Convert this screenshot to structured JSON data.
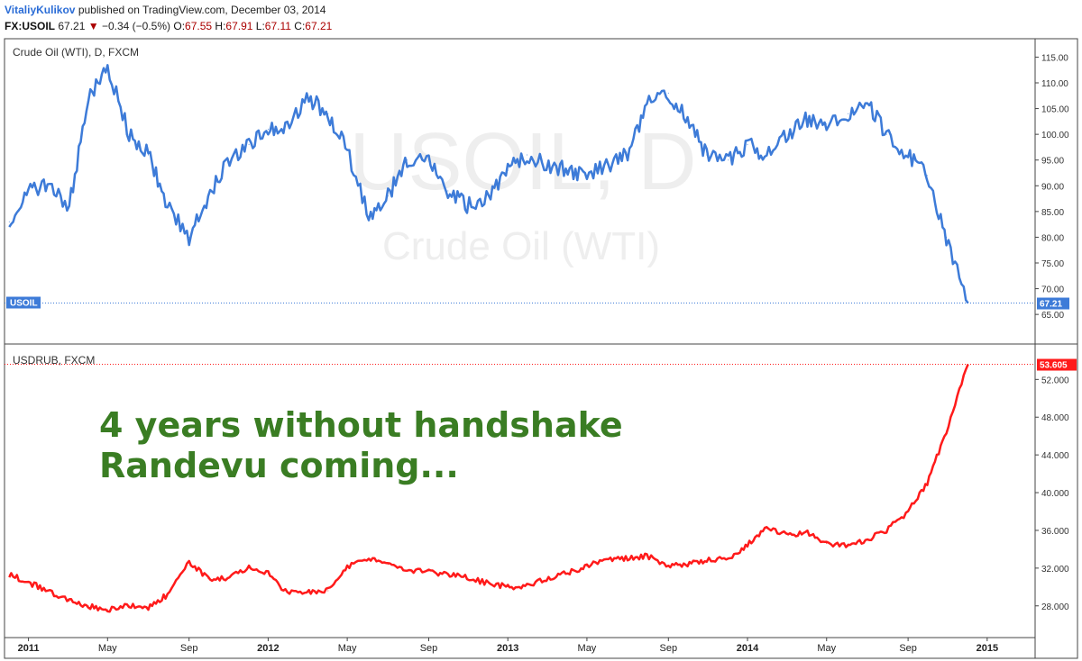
{
  "header": {
    "author": "VitaliyKulikov",
    "published": "published on TradingView.com, December 03, 2014",
    "symbol": "FX:USOIL",
    "last": "67.21",
    "change": "−0.34 (−0.5%)",
    "o_label": "O:",
    "o": "67.55",
    "h_label": "H:",
    "h": "67.91",
    "l_label": "L:",
    "l": "67.11",
    "c_label": "C:",
    "c": "67.21"
  },
  "overlay": {
    "line1": "4 years without handshake",
    "line2": "Randevu coming..."
  },
  "chart_data": [
    {
      "type": "line",
      "title": "Crude Oil (WTI), D, FXCM",
      "watermark": [
        "USOIL, D",
        "Crude Oil (WTI)"
      ],
      "series_label": "USOIL",
      "last_value": "67.21",
      "color": "#3d7bd8",
      "ylim": [
        61,
        117
      ],
      "yticks": [
        65,
        70,
        75,
        80,
        85,
        90,
        95,
        100,
        105,
        110,
        115
      ],
      "x": [
        2010.92,
        2011.0,
        2011.08,
        2011.17,
        2011.25,
        2011.33,
        2011.42,
        2011.5,
        2011.58,
        2011.67,
        2011.75,
        2011.83,
        2011.92,
        2012.0,
        2012.08,
        2012.17,
        2012.25,
        2012.33,
        2012.42,
        2012.5,
        2012.58,
        2012.67,
        2012.75,
        2012.83,
        2012.92,
        2013.0,
        2013.08,
        2013.17,
        2013.25,
        2013.33,
        2013.42,
        2013.5,
        2013.58,
        2013.67,
        2013.75,
        2013.83,
        2013.92,
        2014.0,
        2014.08,
        2014.17,
        2014.25,
        2014.33,
        2014.42,
        2014.5,
        2014.58,
        2014.67,
        2014.75,
        2014.83,
        2014.92
      ],
      "y": [
        83,
        89,
        90,
        86,
        107,
        113,
        100,
        96,
        86,
        80,
        88,
        95,
        98,
        101,
        102,
        107,
        104,
        97,
        84,
        88,
        95,
        95,
        89,
        86,
        88,
        93,
        96,
        94,
        93,
        92,
        94,
        96,
        106,
        108,
        103,
        96,
        95,
        98,
        96,
        100,
        103,
        102,
        104,
        106,
        100,
        96,
        92,
        80,
        67.21
      ]
    },
    {
      "type": "line",
      "title": "USDRUB, FXCM",
      "last_value": "53.605",
      "color": "#ff1a1a",
      "ylim": [
        25.4,
        54.8
      ],
      "yticks": [
        "28.000",
        "32.000",
        "36.000",
        "40.000",
        "44.000",
        "48.000",
        "52.000"
      ],
      "x": [
        2010.92,
        2011.0,
        2011.08,
        2011.17,
        2011.25,
        2011.33,
        2011.42,
        2011.5,
        2011.58,
        2011.67,
        2011.75,
        2011.83,
        2011.92,
        2012.0,
        2012.08,
        2012.17,
        2012.25,
        2012.33,
        2012.42,
        2012.5,
        2012.58,
        2012.67,
        2012.75,
        2012.83,
        2012.92,
        2013.0,
        2013.08,
        2013.17,
        2013.25,
        2013.33,
        2013.42,
        2013.5,
        2013.58,
        2013.67,
        2013.75,
        2013.83,
        2013.92,
        2014.0,
        2014.08,
        2014.17,
        2014.25,
        2014.33,
        2014.42,
        2014.5,
        2014.58,
        2014.67,
        2014.75,
        2014.83,
        2014.92
      ],
      "y": [
        31.3,
        30.5,
        29.6,
        28.5,
        28.0,
        27.6,
        28.0,
        27.8,
        29.2,
        32.6,
        30.9,
        31.0,
        32.0,
        31.4,
        29.4,
        29.4,
        29.6,
        32.2,
        33.0,
        32.4,
        31.8,
        31.7,
        31.3,
        31.0,
        30.4,
        30.0,
        30.2,
        31.0,
        31.5,
        32.2,
        33.0,
        33.0,
        33.3,
        32.2,
        32.4,
        32.8,
        33.0,
        34.5,
        36.2,
        35.5,
        35.8,
        34.6,
        34.3,
        35.0,
        36.0,
        38.0,
        41.0,
        46.5,
        53.6
      ]
    }
  ],
  "time_axis": {
    "ticks": [
      {
        "label": "2011",
        "x": 2011.0
      },
      {
        "label": "May",
        "x": 2011.33
      },
      {
        "label": "Sep",
        "x": 2011.67
      },
      {
        "label": "2012",
        "x": 2012.0
      },
      {
        "label": "May",
        "x": 2012.33
      },
      {
        "label": "Sep",
        "x": 2012.67
      },
      {
        "label": "2013",
        "x": 2013.0
      },
      {
        "label": "May",
        "x": 2013.33
      },
      {
        "label": "Sep",
        "x": 2013.67
      },
      {
        "label": "2014",
        "x": 2014.0
      },
      {
        "label": "May",
        "x": 2014.33
      },
      {
        "label": "Sep",
        "x": 2014.67
      },
      {
        "label": "2015",
        "x": 2015.0
      }
    ],
    "xlim": [
      2010.9,
      2015.2
    ]
  }
}
